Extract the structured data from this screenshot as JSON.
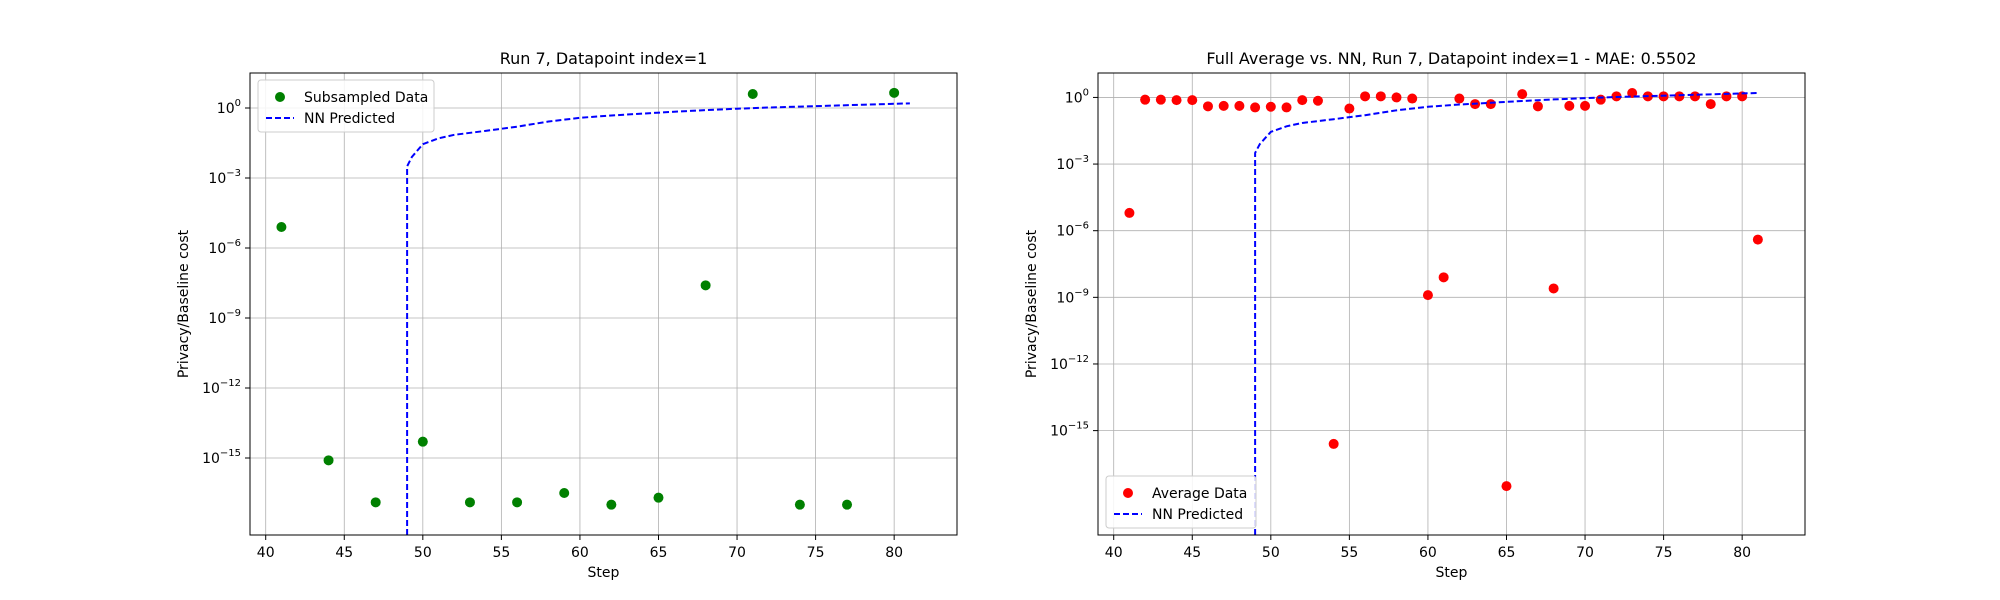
{
  "chart_data": [
    {
      "type": "scatter",
      "title": "Run 7, Datapoint index=1",
      "xlabel": "Step",
      "ylabel": "Privacy/Baseline cost",
      "xlim": [
        39,
        84
      ],
      "ylim_log10": [
        -18.3,
        1.5
      ],
      "yscale": "log",
      "grid": true,
      "legend_position": "upper-left",
      "x_ticks": [
        40,
        45,
        50,
        55,
        60,
        65,
        70,
        75,
        80
      ],
      "y_ticks": [
        {
          "exp": 0,
          "label": "10^0"
        },
        {
          "exp": -3,
          "label": "10^-3"
        },
        {
          "exp": -6,
          "label": "10^-6"
        },
        {
          "exp": -9,
          "label": "10^-9"
        },
        {
          "exp": -12,
          "label": "10^-12"
        },
        {
          "exp": -15,
          "label": "10^-15"
        }
      ],
      "series": [
        {
          "name": "Subsampled Data",
          "kind": "scatter",
          "color": "#008000",
          "x": [
            41,
            44,
            47,
            50,
            53,
            56,
            59,
            62,
            65,
            68,
            71,
            74,
            77,
            80
          ],
          "y_log10": [
            -5.1,
            -15.1,
            -16.9,
            -14.3,
            -16.9,
            -16.9,
            -16.5,
            -17.0,
            -16.7,
            -7.6,
            0.6,
            -17.0,
            -17.0,
            0.65
          ]
        },
        {
          "name": "NN Predicted",
          "kind": "line",
          "style": "dashed",
          "color": "#0000ff",
          "x": [
            49,
            49,
            49.3,
            50,
            51,
            52,
            54,
            56,
            58,
            60,
            62,
            64,
            66,
            68,
            70,
            72,
            74,
            76,
            78,
            80,
            81
          ],
          "y_log10": [
            -18.3,
            -2.5,
            -2.1,
            -1.55,
            -1.3,
            -1.15,
            -0.98,
            -0.8,
            -0.58,
            -0.42,
            -0.32,
            -0.24,
            -0.16,
            -0.09,
            -0.03,
            0.02,
            0.06,
            0.1,
            0.14,
            0.18,
            0.2
          ]
        }
      ]
    },
    {
      "type": "scatter",
      "title": "Full Average vs. NN, Run 7, Datapoint index=1 - MAE: 0.5502",
      "xlabel": "Step",
      "ylabel": "Privacy/Baseline cost",
      "xlim": [
        39,
        84
      ],
      "ylim_log10": [
        -19.7,
        1.1
      ],
      "yscale": "log",
      "grid": true,
      "legend_position": "lower-left",
      "x_ticks": [
        40,
        45,
        50,
        55,
        60,
        65,
        70,
        75,
        80
      ],
      "y_ticks": [
        {
          "exp": 0,
          "label": "10^0"
        },
        {
          "exp": -3,
          "label": "10^-3"
        },
        {
          "exp": -6,
          "label": "10^-6"
        },
        {
          "exp": -9,
          "label": "10^-9"
        },
        {
          "exp": -12,
          "label": "10^-12"
        },
        {
          "exp": -15,
          "label": "10^-15"
        }
      ],
      "series": [
        {
          "name": "Average Data",
          "kind": "scatter",
          "color": "#ff0000",
          "x": [
            41,
            42,
            43,
            44,
            45,
            46,
            47,
            48,
            49,
            50,
            51,
            52,
            53,
            54,
            55,
            56,
            57,
            58,
            59,
            60,
            61,
            62,
            63,
            64,
            65,
            66,
            67,
            68,
            69,
            70,
            71,
            72,
            73,
            74,
            75,
            76,
            77,
            78,
            79,
            80,
            81
          ],
          "y_log10": [
            -5.2,
            -0.1,
            -0.1,
            -0.12,
            -0.12,
            -0.4,
            -0.38,
            -0.38,
            -0.45,
            -0.42,
            -0.45,
            -0.12,
            -0.15,
            -15.6,
            -0.5,
            0.05,
            0.05,
            0.0,
            -0.05,
            -8.9,
            -8.1,
            -0.05,
            -0.3,
            -0.3,
            -17.5,
            0.15,
            -0.4,
            -8.6,
            -0.38,
            -0.38,
            -0.1,
            0.05,
            0.2,
            0.05,
            0.05,
            0.05,
            0.05,
            -0.3,
            0.05,
            0.05,
            -6.4
          ]
        },
        {
          "name": "NN Predicted",
          "kind": "line",
          "style": "dashed",
          "color": "#0000ff",
          "x": [
            49,
            49,
            49.3,
            50,
            51,
            52,
            54,
            56,
            58,
            60,
            62,
            64,
            66,
            68,
            70,
            72,
            74,
            76,
            78,
            80,
            81
          ],
          "y_log10": [
            -19.7,
            -2.5,
            -2.1,
            -1.55,
            -1.3,
            -1.15,
            -0.98,
            -0.8,
            -0.58,
            -0.42,
            -0.32,
            -0.24,
            -0.16,
            -0.09,
            -0.03,
            0.02,
            0.06,
            0.1,
            0.14,
            0.18,
            0.2
          ]
        }
      ]
    }
  ]
}
